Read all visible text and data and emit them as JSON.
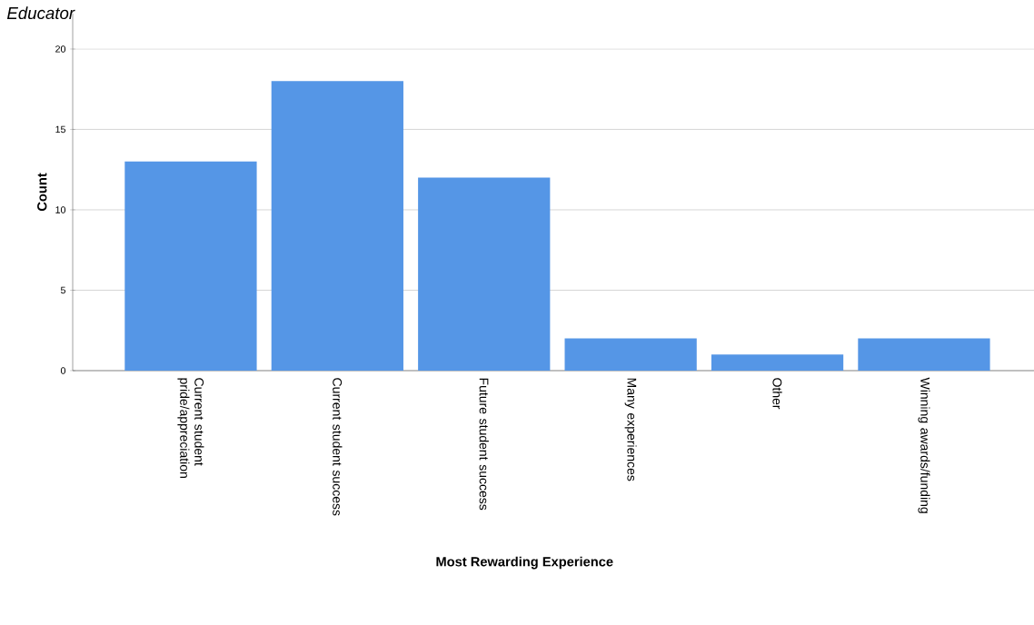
{
  "chart_data": {
    "type": "bar",
    "title": "Educator",
    "xlabel": "Most Rewarding Experience",
    "ylabel": "Count",
    "categories": [
      "Current student pride/appreciation",
      "Current student success",
      "Future student success",
      "Many experiences",
      "Other",
      "Winning awards/funding"
    ],
    "values": [
      13,
      18,
      12,
      2,
      1,
      2
    ],
    "color": "#5596e6",
    "ylim": [
      0,
      22.2
    ],
    "yticks": [
      0,
      5,
      10,
      15,
      20
    ],
    "grid": "y"
  }
}
